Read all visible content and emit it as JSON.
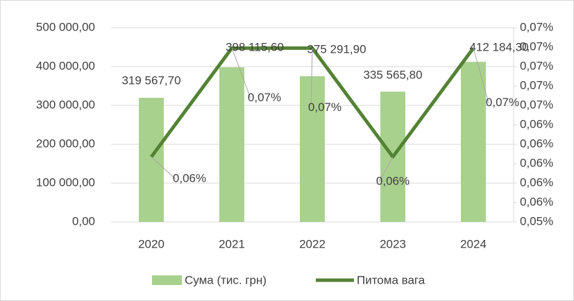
{
  "chart_data": {
    "type": "bar_line",
    "categories": [
      "2020",
      "2021",
      "2022",
      "2023",
      "2024"
    ],
    "series": [
      {
        "name": "Сума (тис. грн)",
        "type": "bar",
        "color": "#a9d18e",
        "values": [
          319567.7,
          398115.6,
          375291.9,
          335565.8,
          412184.3
        ],
        "value_labels": [
          "319 567,70",
          "398 115,60",
          "375 291,90",
          "335 565,80",
          "412 184,30"
        ]
      },
      {
        "name": "Питома вага",
        "type": "line",
        "axis": "y2",
        "color": "#548235",
        "values": [
          0.0607,
          0.0719,
          0.0719,
          0.0607,
          0.0719
        ],
        "value_labels": [
          "0,06%",
          "0,07%",
          "0,07%",
          "0,06%",
          "0,07%"
        ]
      }
    ],
    "ylim": [
      0,
      500000
    ],
    "yticks": [
      {
        "value": 0,
        "label": "0,00"
      },
      {
        "value": 100000,
        "label": "100 000,00"
      },
      {
        "value": 200000,
        "label": "200 000,00"
      },
      {
        "value": 300000,
        "label": "300 000,00"
      },
      {
        "value": 400000,
        "label": "400 000,00"
      },
      {
        "value": 500000,
        "label": "500 000,00"
      }
    ],
    "y2lim": [
      0.054,
      0.074
    ],
    "y2ticks": [
      {
        "value": 0.054,
        "label": "0,05%"
      },
      {
        "value": 0.056,
        "label": "0,06%"
      },
      {
        "value": 0.058,
        "label": "0,06%"
      },
      {
        "value": 0.06,
        "label": "0,06%"
      },
      {
        "value": 0.062,
        "label": "0,06%"
      },
      {
        "value": 0.064,
        "label": "0,06%"
      },
      {
        "value": 0.066,
        "label": "0,07%"
      },
      {
        "value": 0.068,
        "label": "0,07%"
      },
      {
        "value": 0.07,
        "label": "0,07%"
      },
      {
        "value": 0.072,
        "label": "0,07%"
      },
      {
        "value": 0.074,
        "label": "0,07%"
      }
    ],
    "grid": true,
    "legend": "bottom"
  }
}
